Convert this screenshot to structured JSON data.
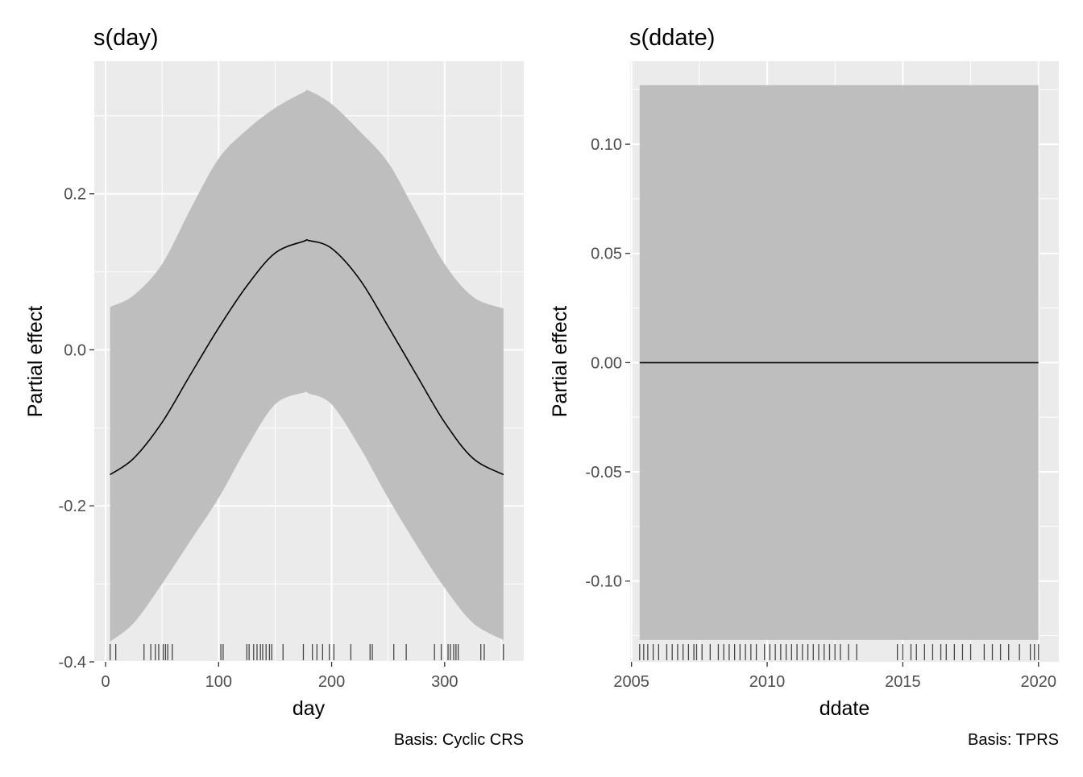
{
  "chart_data": [
    {
      "type": "line",
      "title": "s(day)",
      "xlabel": "day",
      "ylabel": "Partial effect",
      "caption": "Basis: Cyclic CRS",
      "xlim": [
        -10,
        370
      ],
      "ylim": [
        -0.4,
        0.37
      ],
      "x_ticks": [
        0,
        100,
        200,
        300
      ],
      "x_tick_labels": [
        "0",
        "100",
        "200",
        "300"
      ],
      "y_ticks": [
        -0.4,
        -0.2,
        0.0,
        0.2
      ],
      "y_tick_labels": [
        "-0.4",
        "-0.2",
        "0.0",
        "0.2"
      ],
      "grid": true,
      "series": [
        {
          "x": [
            4,
            25,
            50,
            75,
            100,
            125,
            150,
            175,
            180,
            200,
            225,
            250,
            275,
            300,
            325,
            352
          ],
          "y": [
            -0.16,
            -0.139,
            -0.093,
            -0.032,
            0.028,
            0.082,
            0.124,
            0.139,
            0.14,
            0.13,
            0.09,
            0.03,
            -0.032,
            -0.093,
            -0.139,
            -0.16
          ],
          "lower": [
            -0.374,
            -0.35,
            -0.3,
            -0.245,
            -0.19,
            -0.125,
            -0.07,
            -0.055,
            -0.056,
            -0.07,
            -0.125,
            -0.19,
            -0.25,
            -0.305,
            -0.35,
            -0.372
          ],
          "upper": [
            0.055,
            0.07,
            0.11,
            0.18,
            0.245,
            0.282,
            0.31,
            0.33,
            0.332,
            0.315,
            0.28,
            0.24,
            0.175,
            0.11,
            0.068,
            0.053
          ]
        }
      ],
      "rug": [
        4,
        9,
        34,
        40,
        44,
        47,
        51,
        53,
        55,
        59,
        102,
        104,
        125,
        127,
        131,
        134,
        137,
        139,
        142,
        145,
        147,
        157,
        175,
        183,
        187,
        192,
        198,
        202,
        217,
        234,
        236,
        255,
        266,
        291,
        297,
        303,
        305,
        308,
        310,
        312,
        332,
        335,
        352
      ]
    },
    {
      "type": "line",
      "title": "s(ddate)",
      "xlabel": "ddate",
      "ylabel": "Partial effect",
      "caption": "Basis: TPRS",
      "xlim": [
        2004.95,
        2020.75
      ],
      "ylim": [
        -0.137,
        0.138
      ],
      "x_ticks": [
        2005,
        2010,
        2015,
        2020
      ],
      "x_tick_labels": [
        "2005",
        "2010",
        "2015",
        "2020"
      ],
      "y_ticks": [
        -0.1,
        -0.05,
        0.0,
        0.05,
        0.1
      ],
      "y_tick_labels": [
        "-0.10",
        "-0.05",
        "0.00",
        "0.05",
        "0.10"
      ],
      "grid": true,
      "series": [
        {
          "x": [
            2005.3,
            2020
          ],
          "y": [
            0.0,
            0.0
          ],
          "lower": [
            -0.127,
            -0.127
          ],
          "upper": [
            0.127,
            0.127
          ]
        }
      ],
      "rug": [
        2005.3,
        2005.45,
        2005.6,
        2005.8,
        2006.0,
        2006.3,
        2006.5,
        2006.7,
        2006.9,
        2007.1,
        2007.3,
        2007.4,
        2007.6,
        2007.9,
        2008.2,
        2008.4,
        2008.6,
        2008.8,
        2009.0,
        2009.2,
        2009.4,
        2009.6,
        2009.9,
        2010.1,
        2010.3,
        2010.5,
        2010.7,
        2010.9,
        2011.1,
        2011.3,
        2011.5,
        2011.7,
        2011.9,
        2012.1,
        2012.3,
        2012.5,
        2012.7,
        2013.0,
        2013.3,
        2014.8,
        2015.0,
        2015.3,
        2015.5,
        2015.8,
        2016.1,
        2016.4,
        2016.6,
        2016.9,
        2017.2,
        2017.5,
        2018.0,
        2018.3,
        2018.6,
        2018.9,
        2019.3,
        2019.7,
        2019.85,
        2020.0
      ]
    }
  ]
}
